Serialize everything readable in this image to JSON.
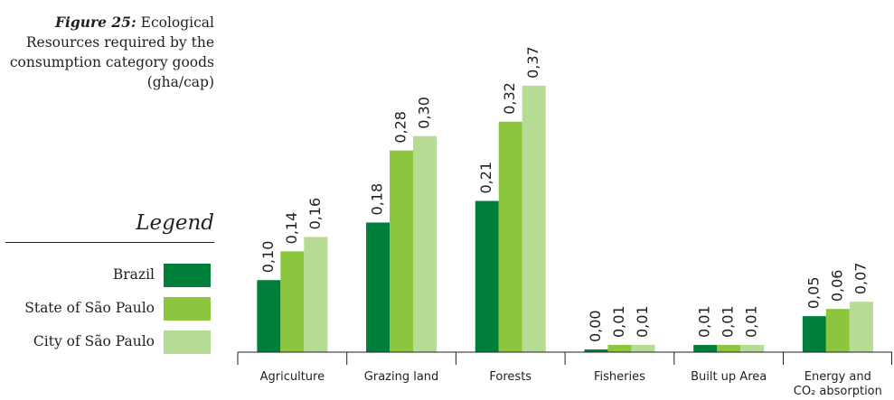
{
  "caption": {
    "label": "Figure 25:",
    "text": "Ecological Resources required by the consumption category goods (gha/cap)"
  },
  "legend": {
    "title": "Legend",
    "items": [
      {
        "label": "Brazil",
        "color": "#007f3a"
      },
      {
        "label": "State of São Paulo",
        "color": "#8cc63f"
      },
      {
        "label": "City of São Paulo",
        "color": "#b5db95"
      }
    ]
  },
  "chart_data": {
    "type": "bar",
    "title": "",
    "xlabel": "",
    "ylabel": "",
    "ylim": [
      0,
      0.41
    ],
    "grid": false,
    "legend_position": "left",
    "categories": [
      "Agriculture",
      "Grazing land",
      "Forests",
      "Fisheries",
      "Built up Area",
      "Energy and CO₂ absorption"
    ],
    "series": [
      {
        "name": "Brazil",
        "color": "#007f3a",
        "values": [
          0.1,
          0.18,
          0.21,
          0.0,
          0.01,
          0.05
        ],
        "labels": [
          "0,10",
          "0,18",
          "0,21",
          "0,00",
          "0,01",
          "0,05"
        ]
      },
      {
        "name": "State of São Paulo",
        "color": "#8cc63f",
        "values": [
          0.14,
          0.28,
          0.32,
          0.01,
          0.01,
          0.06
        ],
        "labels": [
          "0,14",
          "0,28",
          "0,32",
          "0,01",
          "0,01",
          "0,06"
        ]
      },
      {
        "name": "City of São Paulo",
        "color": "#b5db95",
        "values": [
          0.16,
          0.3,
          0.37,
          0.01,
          0.01,
          0.07
        ],
        "labels": [
          "0,16",
          "0,30",
          "0,37",
          "0,01",
          "0,01",
          "0,07"
        ]
      }
    ]
  }
}
